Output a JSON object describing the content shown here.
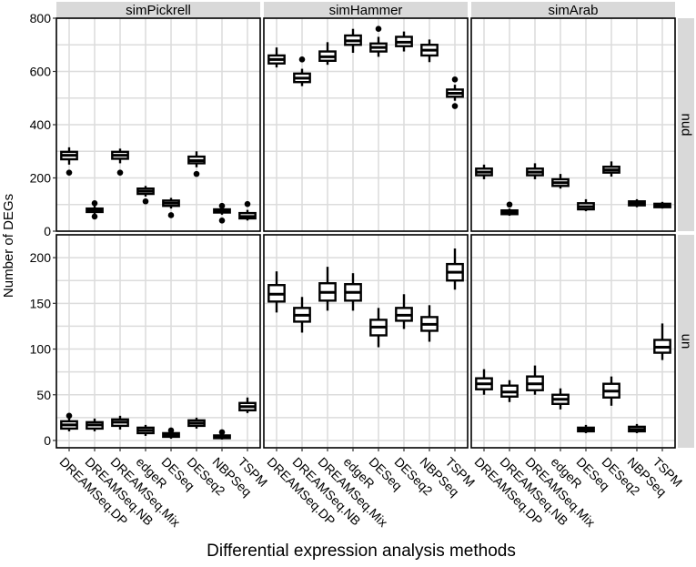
{
  "chart_data": {
    "type": "boxplot",
    "xlabel": "Differential expression analysis methods",
    "ylabel": "Number of DEGs",
    "categories": [
      "DREAMSeq.DP",
      "DREAMSeq.NB",
      "DREAMSeq.Mix",
      "edgeR",
      "DESeq",
      "DESeq2",
      "NBPSeq",
      "TSPM"
    ],
    "columns": [
      "simPickrell",
      "simHammer",
      "simArab"
    ],
    "rows": [
      {
        "name": "nud",
        "ylim": [
          0,
          800
        ],
        "yticks": [
          0,
          200,
          400,
          600,
          800
        ]
      },
      {
        "name": "un",
        "ylim": [
          -8,
          225
        ],
        "yticks": [
          0,
          50,
          100,
          150,
          200
        ]
      }
    ],
    "panels": [
      {
        "row": "nud",
        "column": "simPickrell",
        "boxes": [
          {
            "min": 250,
            "q1": 270,
            "median": 285,
            "q3": 298,
            "max": 315,
            "outliers": [
              220
            ]
          },
          {
            "min": 65,
            "q1": 72,
            "median": 78,
            "q3": 85,
            "max": 95,
            "outliers": [
              55,
              105
            ]
          },
          {
            "min": 255,
            "q1": 272,
            "median": 285,
            "q3": 298,
            "max": 310,
            "outliers": [
              220
            ]
          },
          {
            "min": 130,
            "q1": 140,
            "median": 150,
            "q3": 160,
            "max": 170,
            "outliers": [
              112
            ]
          },
          {
            "min": 85,
            "q1": 95,
            "median": 105,
            "q3": 115,
            "max": 125,
            "outliers": [
              60
            ]
          },
          {
            "min": 240,
            "q1": 255,
            "median": 265,
            "q3": 280,
            "max": 300,
            "outliers": [
              215
            ]
          },
          {
            "min": 62,
            "q1": 70,
            "median": 75,
            "q3": 82,
            "max": 90,
            "outliers": [
              40,
              95
            ]
          },
          {
            "min": 40,
            "q1": 48,
            "median": 55,
            "q3": 68,
            "max": 80,
            "outliers": [
              102
            ]
          }
        ]
      },
      {
        "row": "nud",
        "column": "simHammer",
        "boxes": [
          {
            "min": 615,
            "q1": 630,
            "median": 645,
            "q3": 660,
            "max": 690,
            "outliers": []
          },
          {
            "min": 545,
            "q1": 560,
            "median": 575,
            "q3": 592,
            "max": 610,
            "outliers": [
              645
            ]
          },
          {
            "min": 625,
            "q1": 640,
            "median": 655,
            "q3": 675,
            "max": 710,
            "outliers": []
          },
          {
            "min": 670,
            "q1": 700,
            "median": 715,
            "q3": 735,
            "max": 760,
            "outliers": []
          },
          {
            "min": 655,
            "q1": 675,
            "median": 690,
            "q3": 705,
            "max": 730,
            "outliers": [
              760
            ]
          },
          {
            "min": 675,
            "q1": 695,
            "median": 710,
            "q3": 730,
            "max": 750,
            "outliers": []
          },
          {
            "min": 635,
            "q1": 660,
            "median": 680,
            "q3": 700,
            "max": 720,
            "outliers": []
          },
          {
            "min": 490,
            "q1": 505,
            "median": 518,
            "q3": 532,
            "max": 550,
            "outliers": [
              470,
              570
            ]
          }
        ]
      },
      {
        "row": "nud",
        "column": "simArab",
        "boxes": [
          {
            "min": 195,
            "q1": 210,
            "median": 222,
            "q3": 235,
            "max": 250,
            "outliers": []
          },
          {
            "min": 58,
            "q1": 64,
            "median": 70,
            "q3": 78,
            "max": 85,
            "outliers": [
              100
            ]
          },
          {
            "min": 195,
            "q1": 210,
            "median": 222,
            "q3": 235,
            "max": 255,
            "outliers": []
          },
          {
            "min": 160,
            "q1": 170,
            "median": 182,
            "q3": 195,
            "max": 215,
            "outliers": []
          },
          {
            "min": 75,
            "q1": 82,
            "median": 92,
            "q3": 105,
            "max": 120,
            "outliers": []
          },
          {
            "min": 205,
            "q1": 220,
            "median": 230,
            "q3": 242,
            "max": 262,
            "outliers": []
          },
          {
            "min": 90,
            "q1": 97,
            "median": 105,
            "q3": 112,
            "max": 120,
            "outliers": []
          },
          {
            "min": 85,
            "q1": 90,
            "median": 97,
            "q3": 103,
            "max": 110,
            "outliers": []
          }
        ]
      },
      {
        "row": "un",
        "column": "simPickrell",
        "boxes": [
          {
            "min": 10,
            "q1": 13,
            "median": 17,
            "q3": 21,
            "max": 25,
            "outliers": [
              27
            ]
          },
          {
            "min": 10,
            "q1": 13,
            "median": 17,
            "q3": 20,
            "max": 24,
            "outliers": []
          },
          {
            "min": 12,
            "q1": 16,
            "median": 20,
            "q3": 23,
            "max": 27,
            "outliers": []
          },
          {
            "min": 5,
            "q1": 8,
            "median": 11,
            "q3": 14,
            "max": 17,
            "outliers": []
          },
          {
            "min": 2,
            "q1": 4,
            "median": 6,
            "q3": 8,
            "max": 10,
            "outliers": [
              11
            ]
          },
          {
            "min": 13,
            "q1": 16,
            "median": 19,
            "q3": 22,
            "max": 25,
            "outliers": []
          },
          {
            "min": 1,
            "q1": 2.5,
            "median": 4,
            "q3": 5.5,
            "max": 7,
            "outliers": [
              9
            ]
          },
          {
            "min": 30,
            "q1": 33,
            "median": 37,
            "q3": 41,
            "max": 47,
            "outliers": []
          }
        ]
      },
      {
        "row": "un",
        "column": "simHammer",
        "boxes": [
          {
            "min": 140,
            "q1": 152,
            "median": 160,
            "q3": 170,
            "max": 185,
            "outliers": []
          },
          {
            "min": 118,
            "q1": 130,
            "median": 137,
            "q3": 145,
            "max": 157,
            "outliers": []
          },
          {
            "min": 142,
            "q1": 153,
            "median": 162,
            "q3": 172,
            "max": 190,
            "outliers": []
          },
          {
            "min": 142,
            "q1": 153,
            "median": 162,
            "q3": 171,
            "max": 183,
            "outliers": []
          },
          {
            "min": 102,
            "q1": 115,
            "median": 124,
            "q3": 132,
            "max": 145,
            "outliers": []
          },
          {
            "min": 122,
            "q1": 131,
            "median": 137,
            "q3": 145,
            "max": 160,
            "outliers": []
          },
          {
            "min": 108,
            "q1": 120,
            "median": 127,
            "q3": 135,
            "max": 148,
            "outliers": []
          },
          {
            "min": 165,
            "q1": 175,
            "median": 184,
            "q3": 193,
            "max": 210,
            "outliers": []
          }
        ]
      },
      {
        "row": "un",
        "column": "simArab",
        "boxes": [
          {
            "min": 50,
            "q1": 56,
            "median": 62,
            "q3": 68,
            "max": 78,
            "outliers": []
          },
          {
            "min": 42,
            "q1": 48,
            "median": 53,
            "q3": 60,
            "max": 66,
            "outliers": []
          },
          {
            "min": 50,
            "q1": 55,
            "median": 62,
            "q3": 70,
            "max": 82,
            "outliers": []
          },
          {
            "min": 34,
            "q1": 40,
            "median": 45,
            "q3": 50,
            "max": 57,
            "outliers": []
          },
          {
            "min": 8,
            "q1": 10,
            "median": 12,
            "q3": 14,
            "max": 17,
            "outliers": []
          },
          {
            "min": 38,
            "q1": 47,
            "median": 54,
            "q3": 62,
            "max": 70,
            "outliers": []
          },
          {
            "min": 8,
            "q1": 10,
            "median": 12,
            "q3": 15,
            "max": 18,
            "outliers": []
          },
          {
            "min": 88,
            "q1": 96,
            "median": 102,
            "q3": 110,
            "max": 128,
            "outliers": []
          }
        ]
      }
    ]
  }
}
